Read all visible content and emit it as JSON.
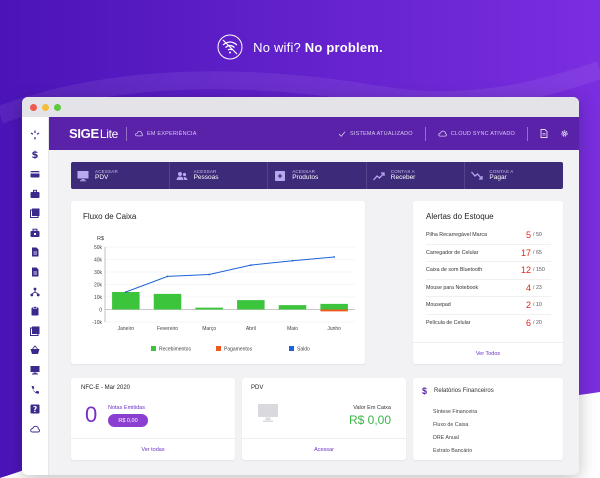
{
  "banner": {
    "lead": "No wifi?",
    "emphasis": "No problem."
  },
  "colors": {
    "purple": "#5a22a8",
    "dark_purple": "#3d2a78",
    "alert_red": "#e0281e",
    "green": "#3cb54a"
  },
  "sidebar": {
    "items": [
      {
        "icon": "loader-icon"
      },
      {
        "icon": "dollar-icon"
      },
      {
        "icon": "card-icon"
      },
      {
        "icon": "briefcase-icon"
      },
      {
        "icon": "stack-icon"
      },
      {
        "icon": "toolbox-icon"
      },
      {
        "icon": "document-icon"
      },
      {
        "icon": "document-icon"
      },
      {
        "icon": "network-icon"
      },
      {
        "icon": "clipboard-icon"
      },
      {
        "icon": "stack-icon"
      },
      {
        "icon": "basket-icon"
      },
      {
        "icon": "monitor-icon"
      },
      {
        "icon": "phone-icon"
      },
      {
        "icon": "help-icon"
      },
      {
        "icon": "cloud-icon"
      }
    ]
  },
  "topbar": {
    "logo_main": "SIGE",
    "logo_sub": "Lite",
    "mode_label": "EM EXPERIÊNCIA",
    "status_system": "SISTEMA ATUALIZADO",
    "status_cloud": "CLOUD SYNC ATIVADO"
  },
  "quick_actions": [
    {
      "small": "ACESSAR",
      "big": "PDV",
      "icon": "monitor-icon"
    },
    {
      "small": "ACESSAR",
      "big": "Pessoas",
      "icon": "people-icon"
    },
    {
      "small": "ACESSAR",
      "big": "Produtos",
      "icon": "box-icon"
    },
    {
      "small": "CONTAS A",
      "big": "Receber",
      "icon": "trend-up-icon"
    },
    {
      "small": "CONTAS A",
      "big": "Pagar",
      "icon": "trend-down-icon"
    }
  ],
  "fluxo": {
    "title": "Fluxo de Caixa"
  },
  "chart_data": {
    "type": "bar",
    "title": "",
    "ylabel": "R$",
    "categories": [
      "Janeiro",
      "Fevereiro",
      "Março",
      "Abril",
      "Maio",
      "Junho"
    ],
    "yticks": [
      "50k",
      "40k",
      "30k",
      "20k",
      "10k",
      "0",
      "-10k"
    ],
    "ylim": [
      -10000,
      50000
    ],
    "series": [
      {
        "name": "Recebimentos",
        "type": "bar",
        "color": "#3cc43c",
        "values": [
          14000,
          12500,
          1500,
          7500,
          3500,
          4500
        ]
      },
      {
        "name": "Pagamentos",
        "type": "bar",
        "color": "#f05a1e",
        "values": [
          0,
          0,
          0,
          0,
          0,
          -1500
        ]
      },
      {
        "name": "Saldo",
        "type": "line",
        "color": "#1f62d8",
        "values": [
          14000,
          26500,
          28000,
          35500,
          39000,
          42000
        ]
      }
    ],
    "legend": "bottom"
  },
  "alertas": {
    "title": "Alertas do Estoque",
    "items": [
      {
        "name": "Pilha Recarregável Marca",
        "count": "5",
        "total": "/ 50"
      },
      {
        "name": "Carregador de Celular",
        "count": "17",
        "total": "/ 65"
      },
      {
        "name": "Caixa de som Bluetooth",
        "count": "12",
        "total": "/ 150"
      },
      {
        "name": "Mouse para Notebook",
        "count": "4",
        "total": "/ 23"
      },
      {
        "name": "Mousepad",
        "count": "2",
        "total": "/ 10"
      },
      {
        "name": "Película de Celular",
        "count": "6",
        "total": "/ 20"
      }
    ],
    "link": "Ver Todos"
  },
  "nfce": {
    "title": "NFC-E - Mar 2020",
    "count": "0",
    "label": "Notas Emitidas",
    "amount": "R$ 0,00",
    "link": "Ver todas"
  },
  "pdv": {
    "title": "PDV",
    "label": "Valor Em Caixa",
    "value": "R$ 0,00",
    "link": "Acessar"
  },
  "relatorios": {
    "title": "Relatórios Financeiros",
    "items": [
      "Síntese Financeira",
      "Fluxo de Caixa",
      "DRE Anual",
      "Extrato Bancário"
    ]
  }
}
